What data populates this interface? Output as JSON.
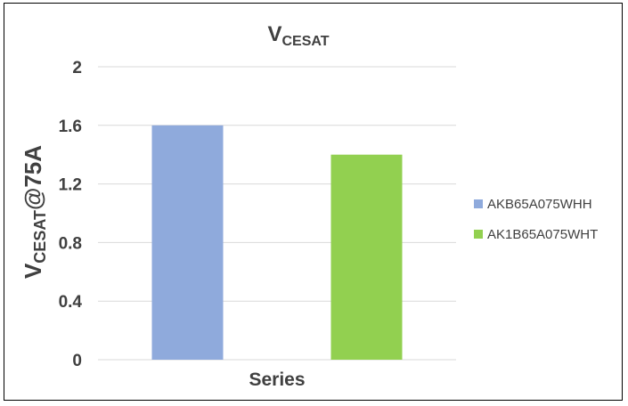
{
  "chart_data": {
    "type": "bar",
    "title_main": "V",
    "title_sub": "CESAT",
    "xlabel": "Series",
    "ylabel_main": "V",
    "ylabel_sub": "CESAT",
    "ylabel_suffix": "@75A",
    "ylim": [
      0,
      2
    ],
    "yticks": [
      0,
      0.4,
      0.8,
      1.2,
      1.6,
      2
    ],
    "ytick_labels": [
      "0",
      "0.4",
      "0.8",
      "1.2",
      "1.6",
      "2"
    ],
    "grid": true,
    "legend_position": "right",
    "series": [
      {
        "name": "AKB65A075WHH",
        "value": 1.6,
        "color": "#8faadc"
      },
      {
        "name": "AK1B65A075WHT",
        "value": 1.4,
        "color": "#92d050"
      }
    ]
  }
}
